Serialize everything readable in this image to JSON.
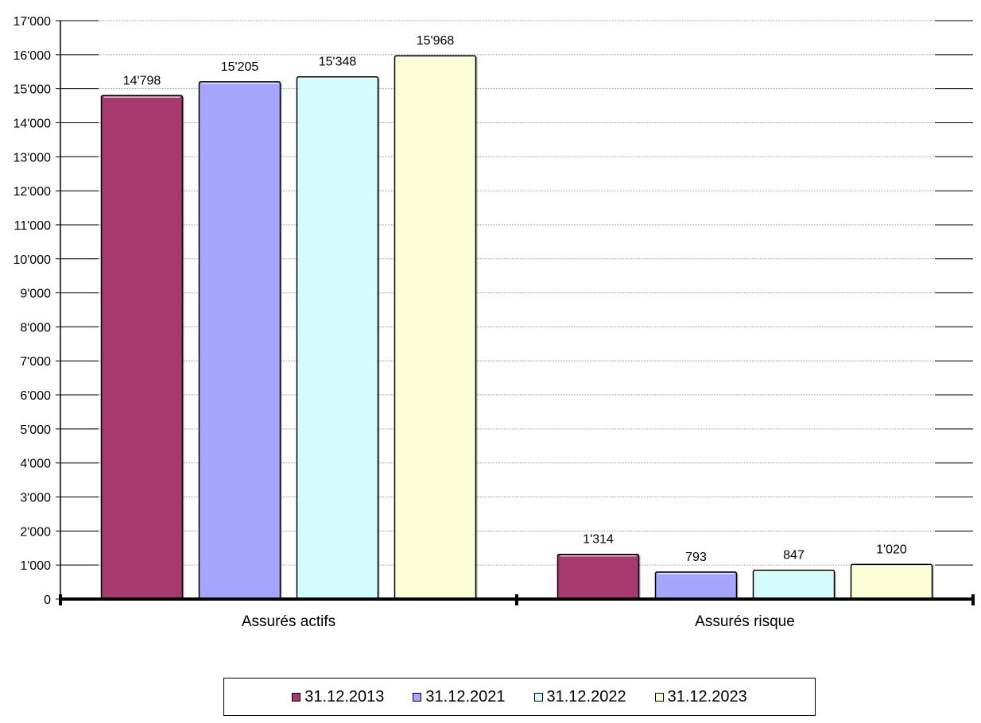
{
  "chart_data": {
    "type": "bar",
    "categories": [
      "Assurés actifs",
      "Assurés risque"
    ],
    "series": [
      {
        "name": "31.12.2013",
        "values": [
          14798,
          1314
        ],
        "labels": [
          "14'798",
          "1'314"
        ],
        "color": "#a53a6e"
      },
      {
        "name": "31.12.2021",
        "values": [
          15205,
          793
        ],
        "labels": [
          "15'205",
          "793"
        ],
        "color": "#a6a6ff"
      },
      {
        "name": "31.12.2022",
        "values": [
          15348,
          847
        ],
        "labels": [
          "15'348",
          "847"
        ],
        "color": "#d4fcfc"
      },
      {
        "name": "31.12.2023",
        "values": [
          15968,
          1020
        ],
        "labels": [
          "15'968",
          "1'020"
        ],
        "color": "#fdfdd6"
      }
    ],
    "ylim": [
      0,
      17000
    ],
    "yticks": [
      "0",
      "1'000",
      "2'000",
      "3'000",
      "4'000",
      "5'000",
      "6'000",
      "7'000",
      "8'000",
      "9'000",
      "10'000",
      "11'000",
      "12'000",
      "13'000",
      "14'000",
      "15'000",
      "16'000",
      "17'000"
    ],
    "grid": true,
    "legend": "bottom"
  }
}
